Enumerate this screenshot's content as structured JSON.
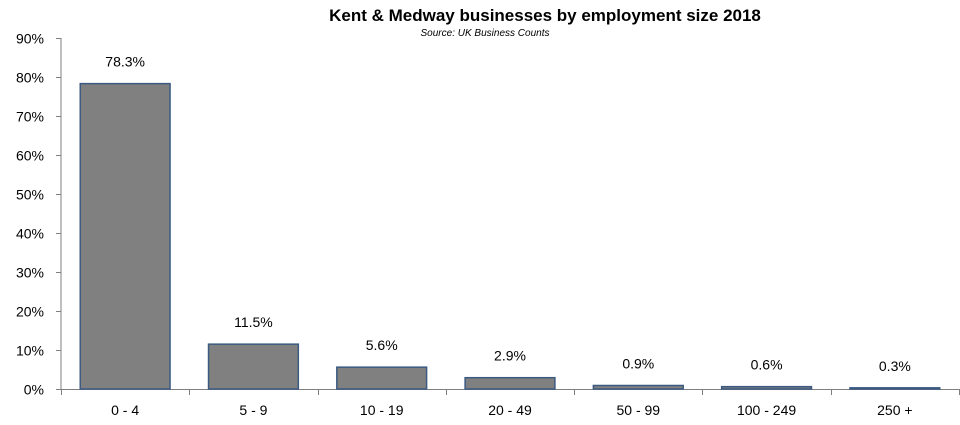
{
  "chart_data": {
    "type": "bar",
    "title": "Kent & Medway businesses by employment size 2018",
    "subtitle": "Source: UK Business Counts",
    "xlabel": "",
    "ylabel": "",
    "categories": [
      "0 - 4",
      "5 - 9",
      "10 - 19",
      "20 - 49",
      "50 - 99",
      "100 - 249",
      "250 +"
    ],
    "values": [
      78.3,
      11.5,
      5.6,
      2.9,
      0.9,
      0.6,
      0.3
    ],
    "data_labels": [
      "78.3%",
      "11.5%",
      "5.6%",
      "2.9%",
      "0.9%",
      "0.6%",
      "0.3%"
    ],
    "ylim": [
      0,
      90
    ],
    "y_ticks": [
      0,
      10,
      20,
      30,
      40,
      50,
      60,
      70,
      80,
      90
    ],
    "y_tick_labels": [
      "0%",
      "10%",
      "20%",
      "30%",
      "40%",
      "50%",
      "60%",
      "70%",
      "80%",
      "90%"
    ],
    "grid": false,
    "legend": "none",
    "colors": {
      "bar_fill": "#808080",
      "bar_stroke": "#3b5a82",
      "axis": "#7f7f7f"
    }
  }
}
